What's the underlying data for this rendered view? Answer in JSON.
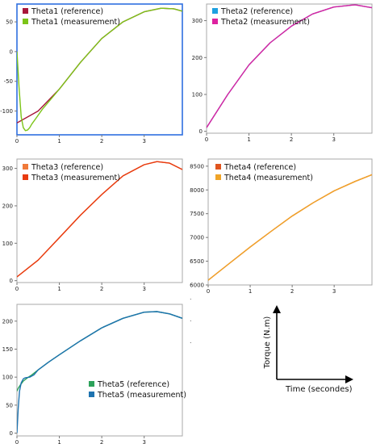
{
  "chart_data": [
    {
      "type": "line",
      "id": "theta1",
      "selected": true,
      "xlim": [
        0,
        3.9
      ],
      "ylim": [
        -140,
        80
      ],
      "x_ticks": [
        0,
        1,
        2,
        3
      ],
      "y_ticks": [
        50,
        0,
        -50,
        -100
      ],
      "legend_position": "top-left",
      "series": [
        {
          "name": "Theta1 (reference)",
          "color": "#a8163a",
          "x": [
            0,
            0.5,
            1,
            1.5,
            2,
            2.5,
            3,
            3.4,
            3.7,
            3.9
          ],
          "y": [
            -120,
            -100,
            -63,
            -18,
            22,
            50,
            67,
            73,
            72,
            68
          ]
        },
        {
          "name": "Theta1 (measurement)",
          "color": "#7cc418",
          "x": [
            0,
            0.05,
            0.1,
            0.15,
            0.2,
            0.25,
            0.3,
            0.35,
            0.45,
            0.6,
            0.8,
            1,
            1.5,
            2,
            2.5,
            3,
            3.4,
            3.7,
            3.9
          ],
          "y": [
            0,
            -60,
            -110,
            -128,
            -133,
            -132,
            -128,
            -122,
            -112,
            -97,
            -80,
            -63,
            -18,
            22,
            50,
            67,
            73,
            72,
            68
          ]
        }
      ]
    },
    {
      "type": "line",
      "id": "theta2",
      "xlim": [
        0,
        3.9
      ],
      "ylim": [
        -5,
        345
      ],
      "x_ticks": [
        0,
        1,
        2,
        3
      ],
      "y_ticks": [
        300,
        200,
        100,
        0
      ],
      "legend_position": "top-left",
      "series": [
        {
          "name": "Theta2 (reference)",
          "color": "#1ea0e0",
          "x": [
            0,
            0.5,
            1,
            1.5,
            2,
            2.5,
            3,
            3.5,
            3.9
          ],
          "y": [
            10,
            100,
            180,
            240,
            285,
            318,
            337,
            343,
            335
          ]
        },
        {
          "name": "Theta2 (measurement)",
          "color": "#dd22a0",
          "x": [
            0,
            0.5,
            1,
            1.5,
            2,
            2.5,
            3,
            3.5,
            3.9
          ],
          "y": [
            10,
            100,
            180,
            240,
            285,
            318,
            337,
            343,
            335
          ]
        }
      ]
    },
    {
      "type": "line",
      "id": "theta3",
      "xlim": [
        0,
        3.9
      ],
      "ylim": [
        -5,
        325
      ],
      "x_ticks": [
        0,
        1,
        2,
        3
      ],
      "y_ticks": [
        300,
        200,
        100,
        0
      ],
      "legend_position": "top-left",
      "series": [
        {
          "name": "Theta3 (reference)",
          "color": "#f07a3a",
          "x": [
            0,
            0.5,
            1,
            1.5,
            2,
            2.5,
            3,
            3.3,
            3.6,
            3.9
          ],
          "y": [
            10,
            55,
            115,
            175,
            230,
            280,
            310,
            318,
            314,
            297
          ]
        },
        {
          "name": "Theta3 (measurement)",
          "color": "#e83a10",
          "x": [
            0,
            0.5,
            1,
            1.5,
            2,
            2.5,
            3,
            3.3,
            3.6,
            3.9
          ],
          "y": [
            10,
            55,
            115,
            175,
            230,
            280,
            310,
            318,
            314,
            297
          ]
        }
      ]
    },
    {
      "type": "line",
      "id": "theta4",
      "xlim": [
        0,
        3.9
      ],
      "ylim": [
        6000,
        8650
      ],
      "x_ticks": [
        0,
        1,
        2,
        3
      ],
      "y_ticks": [
        8500,
        8000,
        7500,
        7000,
        6500,
        6000
      ],
      "legend_position": "top-left",
      "series": [
        {
          "name": "Theta4 (reference)",
          "color": "#e0541e",
          "x": [
            0,
            0.5,
            1,
            1.5,
            2,
            2.5,
            3,
            3.5,
            3.9
          ],
          "y": [
            6100,
            6450,
            6800,
            7130,
            7450,
            7730,
            7980,
            8180,
            8320
          ]
        },
        {
          "name": "Theta4 (measurement)",
          "color": "#f0a428",
          "x": [
            0,
            0.5,
            1,
            1.5,
            2,
            2.5,
            3,
            3.5,
            3.9
          ],
          "y": [
            6100,
            6450,
            6800,
            7130,
            7450,
            7730,
            7980,
            8180,
            8320
          ]
        }
      ]
    },
    {
      "type": "line",
      "id": "theta5",
      "xlim": [
        0,
        3.9
      ],
      "ylim": [
        -5,
        230
      ],
      "x_ticks": [
        0,
        1,
        2,
        3
      ],
      "y_ticks": [
        200,
        150,
        100,
        50,
        0
      ],
      "legend_position": "bottom-right",
      "series": [
        {
          "name": "Theta5 (reference)",
          "color": "#2ca25a",
          "x": [
            0,
            0.03,
            0.08,
            0.15,
            0.25,
            0.35,
            0.5,
            0.75,
            1,
            1.5,
            2,
            2.5,
            3,
            3.3,
            3.6,
            3.9
          ],
          "y": [
            75,
            80,
            86,
            93,
            99,
            104,
            113,
            127,
            140,
            165,
            188,
            205,
            216,
            217,
            213,
            205
          ]
        },
        {
          "name": "Theta5 (measurement)",
          "color": "#1e73b0",
          "x": [
            0,
            0.03,
            0.06,
            0.1,
            0.15,
            0.2,
            0.3,
            0.4,
            0.5,
            0.75,
            1,
            1.5,
            2,
            2.5,
            3,
            3.3,
            3.6,
            3.9
          ],
          "y": [
            0,
            45,
            75,
            90,
            97,
            99,
            100,
            104,
            113,
            127,
            140,
            165,
            188,
            205,
            216,
            217,
            213,
            205
          ]
        }
      ]
    }
  ],
  "axes_guide": {
    "ylabel": "Torque (N.m)",
    "xlabel": "Time (secondes)"
  }
}
